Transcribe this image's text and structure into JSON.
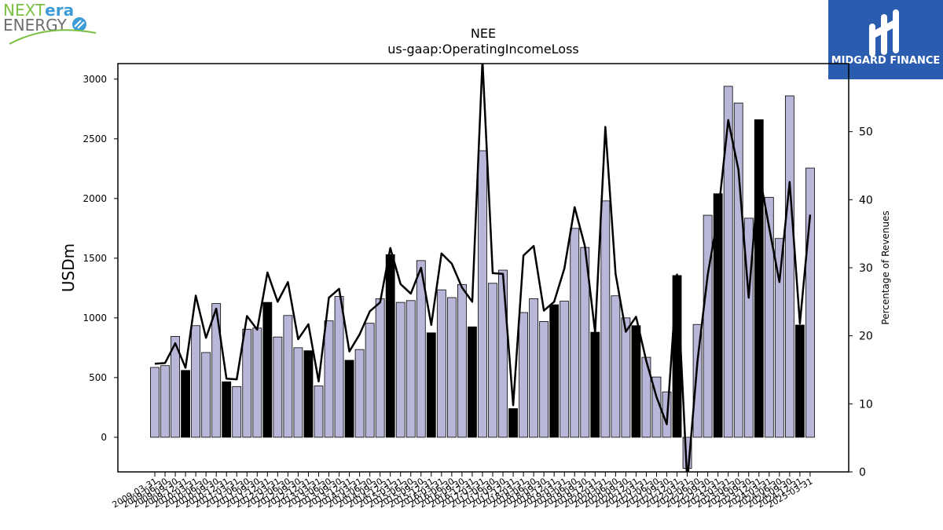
{
  "logos": {
    "left": {
      "next": "NEXT",
      "era": "era",
      "energy": "ENERGY"
    },
    "right": {
      "name": "MIDGARD FINANCE",
      "bg_color": "#2a5db0"
    }
  },
  "chart_data": {
    "type": "bar",
    "title": "NEE",
    "subtitle": "us-gaap:OperatingIncomeLoss",
    "ylabel": "USDm",
    "ylabel_right": "Percentage of Revenues",
    "ylim": [
      -290,
      3130
    ],
    "ylim_right": [
      0,
      60
    ],
    "yticks": [
      0,
      500,
      1000,
      1500,
      2000,
      2500,
      3000
    ],
    "yticks_right": [
      0,
      10,
      20,
      30,
      40,
      50
    ],
    "bar_color": "#b9b7d9",
    "highlight_color": "#000000",
    "grid": false,
    "categories": [
      "2009-03-31",
      "2009-06-30",
      "2009-09-30",
      "2009-12-31",
      "2010-03-31",
      "2010-06-30",
      "2010-09-30",
      "2010-12-31",
      "2011-03-31",
      "2011-06-30",
      "2011-09-30",
      "2011-12-31",
      "2012-03-31",
      "2012-06-30",
      "2012-09-30",
      "2012-12-31",
      "2013-03-31",
      "2013-06-30",
      "2013-09-30",
      "2013-12-31",
      "2014-03-31",
      "2014-06-30",
      "2014-09-30",
      "2014-12-31",
      "2015-03-31",
      "2015-06-30",
      "2015-09-30",
      "2015-12-31",
      "2016-03-31",
      "2016-06-30",
      "2016-09-30",
      "2016-12-31",
      "2017-03-31",
      "2017-06-30",
      "2017-09-30",
      "2017-12-31",
      "2018-03-31",
      "2018-06-30",
      "2018-09-30",
      "2018-12-31",
      "2019-03-31",
      "2019-06-30",
      "2019-09-30",
      "2019-12-31",
      "2020-03-31",
      "2020-06-30",
      "2020-09-30",
      "2020-12-31",
      "2021-03-31",
      "2021-06-30",
      "2021-09-30",
      "2021-12-31",
      "2022-03-31",
      "2022-06-30",
      "2022-09-30",
      "2022-12-31",
      "2023-03-31",
      "2023-06-30",
      "2023-09-30",
      "2023-12-31",
      "2024-03-31",
      "2024-06-30",
      "2024-09-30",
      "2024-12-31",
      "2025-03-31"
    ],
    "series": [
      {
        "name": "",
        "type": "bar",
        "values": [
          585,
          600,
          845,
          560,
          935,
          710,
          1120,
          465,
          425,
          905,
          915,
          1130,
          840,
          1020,
          750,
          725,
          430,
          975,
          1180,
          645,
          735,
          955,
          1160,
          1530,
          1130,
          1145,
          1480,
          875,
          1235,
          1170,
          1280,
          925,
          2400,
          1290,
          1400,
          240,
          1045,
          1160,
          970,
          1110,
          1140,
          1750,
          1590,
          880,
          1980,
          1185,
          1000,
          935,
          670,
          505,
          380,
          1355,
          -260,
          945,
          1860,
          2040,
          2940,
          2800,
          1835,
          2660,
          2010,
          1665,
          2860,
          940,
          2255
        ],
        "highlighted": [
          false,
          false,
          false,
          true,
          false,
          false,
          false,
          true,
          false,
          false,
          false,
          true,
          false,
          false,
          false,
          true,
          false,
          false,
          false,
          true,
          false,
          false,
          false,
          true,
          false,
          false,
          false,
          true,
          false,
          false,
          false,
          true,
          false,
          false,
          false,
          true,
          false,
          false,
          false,
          true,
          false,
          false,
          false,
          true,
          false,
          false,
          false,
          true,
          false,
          false,
          false,
          true,
          false,
          false,
          false,
          true,
          false,
          false,
          false,
          true,
          false,
          false,
          false,
          true,
          false
        ]
      },
      {
        "name": "",
        "type": "line",
        "axis": "right",
        "values": [
          15.9,
          16.0,
          18.9,
          15.3,
          25.9,
          19.7,
          24.0,
          13.7,
          13.6,
          22.9,
          20.9,
          29.3,
          25.0,
          27.9,
          19.5,
          21.7,
          13.3,
          25.6,
          26.9,
          17.7,
          20.2,
          23.6,
          24.9,
          32.9,
          27.6,
          26.2,
          30.0,
          21.6,
          32.1,
          30.6,
          27.1,
          25.0,
          60.5,
          29.2,
          29.1,
          9.8,
          31.8,
          33.2,
          23.7,
          25.0,
          29.9,
          38.9,
          33.2,
          20.5,
          50.7,
          29.1,
          20.6,
          22.8,
          16.3,
          11.0,
          7.0,
          29.0,
          -1.5,
          16.3,
          29.0,
          37.6,
          51.7,
          44.4,
          25.6,
          44.1,
          35.9,
          27.9,
          42.6,
          21.8,
          37.8
        ]
      }
    ]
  }
}
